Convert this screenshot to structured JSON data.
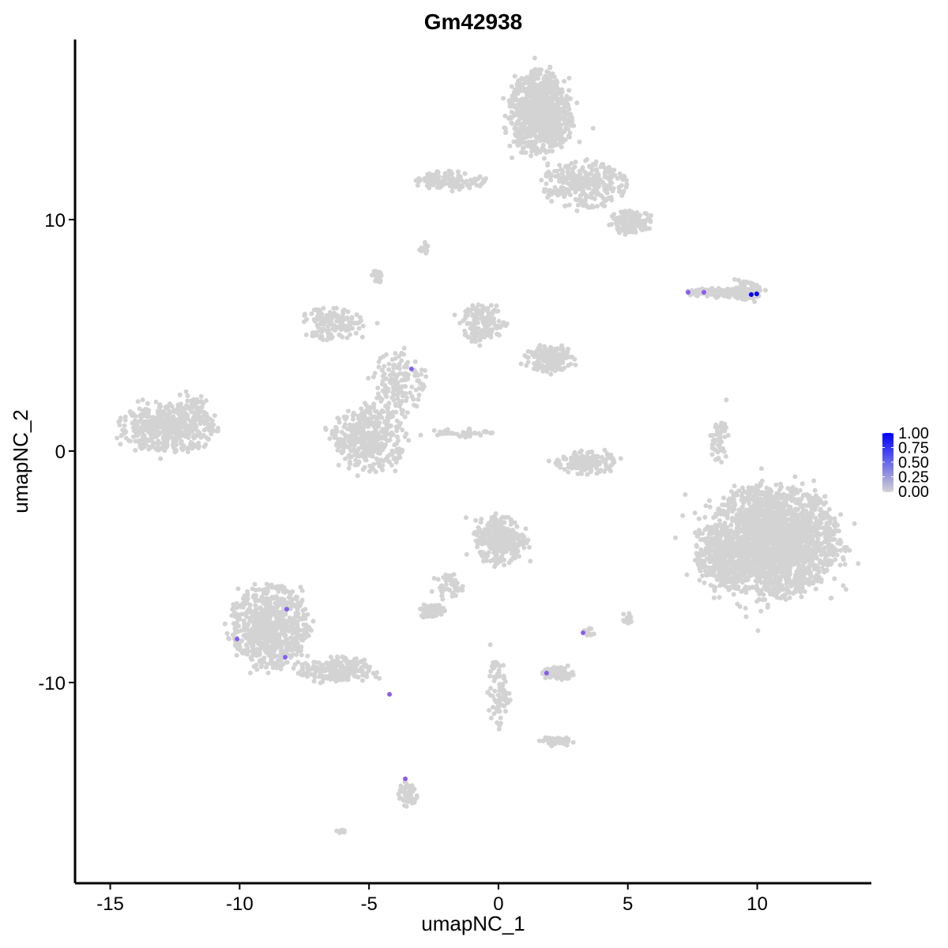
{
  "chart_data": {
    "type": "scatter",
    "title": "Gm42938",
    "xlabel": "umapNC_1",
    "ylabel": "umapNC_2",
    "xlim": [
      -16.36,
      14.41
    ],
    "ylim": [
      -18.67,
      17.78
    ],
    "x_ticks": [
      -15,
      -10,
      -5,
      0,
      5,
      10
    ],
    "x_tick_labels": [
      "-15",
      "-10",
      "-5",
      "0",
      "5",
      "10"
    ],
    "y_ticks": [
      -10,
      0,
      10
    ],
    "y_tick_labels": [
      "-10",
      "0",
      "10"
    ],
    "grid": false,
    "legend": {
      "position": "right",
      "type": "colorbar",
      "range": [
        0,
        1
      ],
      "tick_labels": [
        "0.00",
        "0.25",
        "0.50",
        "0.75",
        "1.00"
      ],
      "low_color": "#d3d3d3",
      "high_color": "#0000ff"
    },
    "background_color_value": 0,
    "background_clusters_note_fields": [
      "cx",
      "cy",
      "rx",
      "ry",
      "n"
    ],
    "background_clusters": [
      [
        10.6,
        -3.9,
        2.5,
        2.4,
        2200
      ],
      [
        8.5,
        -4.6,
        0.9,
        1.4,
        250
      ],
      [
        1.6,
        14.6,
        1.2,
        1.8,
        900
      ],
      [
        3.3,
        11.5,
        1.6,
        1.0,
        300
      ],
      [
        5.1,
        9.9,
        0.8,
        0.5,
        120
      ],
      [
        -1.9,
        11.7,
        1.4,
        0.4,
        120
      ],
      [
        -12.8,
        1.0,
        1.9,
        1.0,
        500
      ],
      [
        -11.8,
        2.0,
        0.6,
        0.5,
        40
      ],
      [
        -5.0,
        0.5,
        1.4,
        1.4,
        400
      ],
      [
        -6.4,
        5.5,
        1.2,
        0.7,
        150
      ],
      [
        -3.8,
        3.0,
        1.0,
        1.4,
        150
      ],
      [
        -0.6,
        5.5,
        0.9,
        0.8,
        150
      ],
      [
        2.0,
        4.0,
        0.9,
        0.6,
        150
      ],
      [
        -1.5,
        0.8,
        1.2,
        0.2,
        40
      ],
      [
        8.6,
        6.85,
        1.3,
        0.2,
        150
      ],
      [
        9.6,
        6.9,
        0.5,
        0.4,
        100
      ],
      [
        3.4,
        -0.5,
        1.2,
        0.5,
        150
      ],
      [
        8.5,
        0.5,
        0.4,
        1.0,
        50
      ],
      [
        -8.8,
        -7.6,
        1.5,
        1.8,
        700
      ],
      [
        -6.3,
        -9.5,
        1.4,
        0.6,
        200
      ],
      [
        0.1,
        -3.8,
        1.0,
        1.1,
        300
      ],
      [
        -2.6,
        -6.9,
        0.5,
        0.3,
        80
      ],
      [
        -1.9,
        -5.8,
        0.6,
        0.5,
        40
      ],
      [
        2.3,
        -9.6,
        0.6,
        0.3,
        80
      ],
      [
        0.0,
        -10.5,
        0.4,
        1.5,
        80
      ],
      [
        2.1,
        -12.5,
        0.6,
        0.2,
        40
      ],
      [
        -3.5,
        -14.8,
        0.4,
        0.6,
        60
      ],
      [
        -2.87,
        8.73,
        0.2,
        0.2,
        20
      ],
      [
        -4.7,
        7.5,
        0.2,
        0.3,
        30
      ],
      [
        3.5,
        -7.8,
        0.2,
        0.3,
        15
      ],
      [
        5.0,
        -7.3,
        0.2,
        0.3,
        15
      ],
      [
        -6.1,
        -16.4,
        0.15,
        0.1,
        8
      ]
    ],
    "expressing_points": [
      {
        "x": 7.33,
        "y": 6.86,
        "value": 0.5
      },
      {
        "x": 7.94,
        "y": 6.86,
        "value": 0.5
      },
      {
        "x": 9.77,
        "y": 6.76,
        "value": 1.0
      },
      {
        "x": 9.98,
        "y": 6.79,
        "value": 1.0
      },
      {
        "x": -3.36,
        "y": 3.55,
        "value": 0.5
      },
      {
        "x": -8.18,
        "y": -6.83,
        "value": 0.5
      },
      {
        "x": -10.1,
        "y": -8.12,
        "value": 0.5
      },
      {
        "x": -8.24,
        "y": -8.91,
        "value": 0.5
      },
      {
        "x": -4.21,
        "y": -10.51,
        "value": 0.5
      },
      {
        "x": 3.27,
        "y": -7.85,
        "value": 0.5
      },
      {
        "x": 1.86,
        "y": -9.59,
        "value": 0.5
      },
      {
        "x": -3.6,
        "y": -14.16,
        "value": 0.5
      }
    ]
  }
}
